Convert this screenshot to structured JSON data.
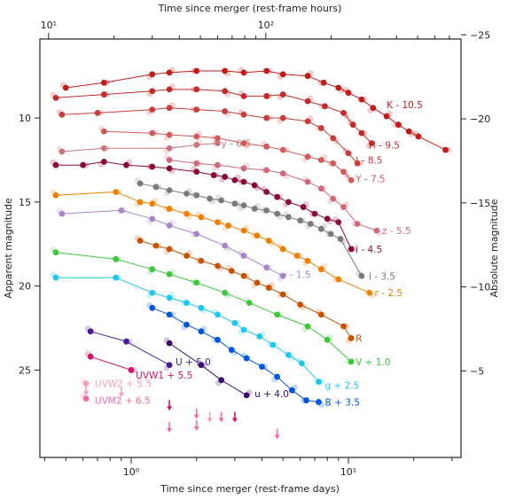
{
  "chart_data": {
    "type": "scatter",
    "xlabel": "Time since merger (rest-frame days)",
    "top_xlabel": "Time since merger (rest-frame hours)",
    "ylabel": "Apparent magnitude",
    "right_ylabel": "Absolute magnitude",
    "x_scale": "log",
    "xlim": [
      0.38,
      33
    ],
    "ylim": [
      30.2,
      5.3
    ],
    "abs_offset": 30.05,
    "x_ticks": [
      {
        "v": 1,
        "label": "10⁰"
      },
      {
        "v": 10,
        "label": "10¹"
      }
    ],
    "top_ticks": [
      {
        "v": 10,
        "label": "10¹"
      },
      {
        "v": 100,
        "label": "10²"
      }
    ],
    "y_ticks": [
      {
        "v": 10,
        "label": "10"
      },
      {
        "v": 15,
        "label": "15"
      },
      {
        "v": 20,
        "label": "20"
      },
      {
        "v": 25,
        "label": "25"
      }
    ],
    "right_ticks": [
      {
        "v": -25,
        "label": "−25"
      },
      {
        "v": -20,
        "label": "−20"
      },
      {
        "v": -15,
        "label": "−15"
      },
      {
        "v": -10,
        "label": "−10"
      },
      {
        "v": -5,
        "label": "−5"
      }
    ],
    "series": [
      {
        "name": "K - 10.5",
        "color": "#c41a1a",
        "label_at": [
          15,
          9.2
        ],
        "values": [
          [
            0.5,
            8.2
          ],
          [
            0.75,
            7.9
          ],
          [
            1.25,
            7.4
          ],
          [
            1.5,
            7.3
          ],
          [
            2.0,
            7.2
          ],
          [
            2.7,
            7.2
          ],
          [
            3.3,
            7.3
          ],
          [
            4.2,
            7.2
          ],
          [
            5.0,
            7.4
          ],
          [
            6.5,
            7.5
          ],
          [
            7.7,
            7.9
          ],
          [
            9.0,
            8.2
          ],
          [
            10.0,
            8.5
          ],
          [
            11.5,
            8.9
          ],
          [
            13.0,
            9.4
          ],
          [
            15.0,
            9.9
          ],
          [
            17.0,
            10.4
          ],
          [
            19.0,
            10.8
          ],
          [
            21.0,
            11.1
          ],
          [
            28.0,
            11.9
          ]
        ]
      },
      {
        "name": "H - 9.5",
        "color": "#c42a2a",
        "label_at": [
          12.4,
          11.6
        ],
        "values": [
          [
            0.45,
            8.8
          ],
          [
            0.75,
            8.6
          ],
          [
            1.25,
            8.4
          ],
          [
            1.5,
            8.3
          ],
          [
            2.0,
            8.3
          ],
          [
            2.7,
            8.4
          ],
          [
            3.3,
            8.7
          ],
          [
            4.2,
            8.7
          ],
          [
            5.0,
            8.6
          ],
          [
            6.5,
            9.0
          ],
          [
            7.8,
            9.3
          ],
          [
            9.5,
            9.7
          ],
          [
            10.5,
            10.4
          ],
          [
            11.5,
            10.9
          ],
          [
            12.8,
            11.5
          ]
        ]
      },
      {
        "name": "J - 8.5",
        "color": "#c73c3c",
        "label_at": [
          10.8,
          12.5
        ],
        "values": [
          [
            0.48,
            9.8
          ],
          [
            0.7,
            9.7
          ],
          [
            1.25,
            9.5
          ],
          [
            1.5,
            9.4
          ],
          [
            2.0,
            9.5
          ],
          [
            2.7,
            9.6
          ],
          [
            3.3,
            9.8
          ],
          [
            4.2,
            10.0
          ],
          [
            5.0,
            10.0
          ],
          [
            6.5,
            10.2
          ],
          [
            7.5,
            10.6
          ],
          [
            8.5,
            11.2
          ],
          [
            10.0,
            12.1
          ],
          [
            11.0,
            12.7
          ]
        ]
      },
      {
        "name": "Y - 7.5",
        "color": "#d25a5a",
        "label_at": [
          10.8,
          13.6
        ],
        "values": [
          [
            0.75,
            10.8
          ],
          [
            1.25,
            10.9
          ],
          [
            1.5,
            11.0
          ],
          [
            2.0,
            11.1
          ],
          [
            2.5,
            11.2
          ],
          [
            3.3,
            11.5
          ],
          [
            4.2,
            11.7
          ],
          [
            5.0,
            11.9
          ],
          [
            6.5,
            12.3
          ],
          [
            7.5,
            12.5
          ],
          [
            8.5,
            12.7
          ],
          [
            9.5,
            13.2
          ],
          [
            10.3,
            13.7
          ]
        ]
      },
      {
        "name": "y - 6.5",
        "color": "#c8767a",
        "label_at": [
          2.6,
          11.5
        ],
        "values": [
          [
            0.48,
            12.0
          ],
          [
            0.75,
            11.8
          ],
          [
            1.5,
            11.8
          ],
          [
            2.0,
            11.6
          ],
          [
            2.5,
            11.5
          ]
        ]
      },
      {
        "name": "i - 4.5",
        "color": "#8b0a3a",
        "label_at": [
          10.8,
          17.8
        ],
        "values": [
          [
            0.45,
            12.8
          ],
          [
            0.6,
            12.8
          ],
          [
            0.75,
            12.6
          ],
          [
            0.95,
            12.8
          ],
          [
            1.25,
            12.9
          ],
          [
            1.5,
            13.0
          ],
          [
            2.0,
            13.2
          ],
          [
            2.4,
            13.4
          ],
          [
            2.7,
            13.5
          ],
          [
            3.0,
            13.7
          ],
          [
            3.3,
            13.8
          ],
          [
            3.7,
            14.0
          ],
          [
            4.2,
            14.4
          ],
          [
            4.7,
            14.7
          ],
          [
            5.3,
            15.0
          ],
          [
            6.2,
            15.3
          ],
          [
            7.0,
            15.7
          ],
          [
            8.0,
            16.0
          ],
          [
            9.0,
            16.2
          ],
          [
            10.3,
            17.8
          ]
        ]
      },
      {
        "name": "z - 5.5",
        "color": "#d06a7a",
        "label_at": [
          14.3,
          16.7
        ],
        "values": [
          [
            1.5,
            12.5
          ],
          [
            2.0,
            12.7
          ],
          [
            2.5,
            12.8
          ],
          [
            3.3,
            13.0
          ],
          [
            4.2,
            13.1
          ],
          [
            5.0,
            13.3
          ],
          [
            6.5,
            13.8
          ],
          [
            7.5,
            14.2
          ],
          [
            8.5,
            14.8
          ],
          [
            9.5,
            15.3
          ],
          [
            11.0,
            16.3
          ],
          [
            13.5,
            16.7
          ]
        ]
      },
      {
        "name": "I - 3.5",
        "color": "#7a7a7a",
        "label_at": [
          12.4,
          19.4
        ],
        "values": [
          [
            1.1,
            13.9
          ],
          [
            1.3,
            14.1
          ],
          [
            1.5,
            14.3
          ],
          [
            1.8,
            14.5
          ],
          [
            2.0,
            14.6
          ],
          [
            2.3,
            14.8
          ],
          [
            2.6,
            14.9
          ],
          [
            3.0,
            15.1
          ],
          [
            3.3,
            15.2
          ],
          [
            3.7,
            15.4
          ],
          [
            4.2,
            15.5
          ],
          [
            4.7,
            15.7
          ],
          [
            5.3,
            15.9
          ],
          [
            6.0,
            16.1
          ],
          [
            6.7,
            16.3
          ],
          [
            7.5,
            16.6
          ],
          [
            8.3,
            16.9
          ],
          [
            9.2,
            17.2
          ],
          [
            11.5,
            19.4
          ]
        ]
      },
      {
        "name": "r - 2.5",
        "color": "#f07f00",
        "label_at": [
          13.2,
          20.4
        ],
        "values": [
          [
            0.45,
            14.6
          ],
          [
            0.85,
            14.4
          ],
          [
            1.1,
            15.0
          ],
          [
            1.25,
            15.1
          ],
          [
            1.5,
            15.4
          ],
          [
            1.8,
            15.7
          ],
          [
            2.1,
            15.9
          ],
          [
            2.5,
            16.2
          ],
          [
            2.8,
            16.4
          ],
          [
            3.3,
            16.7
          ],
          [
            3.8,
            17.0
          ],
          [
            4.3,
            17.3
          ],
          [
            5.0,
            17.8
          ],
          [
            5.8,
            18.2
          ],
          [
            6.5,
            18.5
          ],
          [
            7.5,
            19.0
          ],
          [
            9.0,
            19.6
          ],
          [
            12.5,
            20.4
          ]
        ]
      },
      {
        "name": "w - 1.5",
        "color": "#a885c8",
        "label_at": [
          4.8,
          19.3
        ],
        "values": [
          [
            0.48,
            15.7
          ],
          [
            0.9,
            15.5
          ],
          [
            1.25,
            16.0
          ],
          [
            1.5,
            16.4
          ],
          [
            2.0,
            16.9
          ],
          [
            2.7,
            17.6
          ],
          [
            3.3,
            18.2
          ],
          [
            4.2,
            18.9
          ],
          [
            5.0,
            19.4
          ]
        ]
      },
      {
        "name": "R",
        "color": "#c85000",
        "label_at": [
          10.8,
          23.1
        ],
        "values": [
          [
            1.1,
            17.3
          ],
          [
            1.3,
            17.6
          ],
          [
            1.5,
            17.8
          ],
          [
            1.8,
            18.2
          ],
          [
            2.1,
            18.5
          ],
          [
            2.5,
            18.8
          ],
          [
            2.9,
            19.1
          ],
          [
            3.3,
            19.4
          ],
          [
            3.8,
            19.8
          ],
          [
            4.3,
            20.1
          ],
          [
            5.0,
            20.5
          ],
          [
            6.0,
            21.1
          ],
          [
            7.5,
            21.7
          ],
          [
            9.5,
            22.4
          ],
          [
            10.3,
            23.1
          ]
        ]
      },
      {
        "name": "V + 1.0",
        "color": "#3cc83c",
        "label_at": [
          10.8,
          24.5
        ],
        "values": [
          [
            0.45,
            18.0
          ],
          [
            0.85,
            18.4
          ],
          [
            1.25,
            19.0
          ],
          [
            1.5,
            19.3
          ],
          [
            2.0,
            19.8
          ],
          [
            2.7,
            20.4
          ],
          [
            3.5,
            21.0
          ],
          [
            4.7,
            21.7
          ],
          [
            6.5,
            22.4
          ],
          [
            8.0,
            23.2
          ],
          [
            10.3,
            24.5
          ]
        ]
      },
      {
        "name": "g + 2.5",
        "color": "#1ac8f0",
        "label_at": [
          7.8,
          25.9
        ],
        "values": [
          [
            0.45,
            19.5
          ],
          [
            0.85,
            19.5
          ],
          [
            1.25,
            20.4
          ],
          [
            1.5,
            20.7
          ],
          [
            1.8,
            21.0
          ],
          [
            2.1,
            21.3
          ],
          [
            2.5,
            21.7
          ],
          [
            3.0,
            22.2
          ],
          [
            3.3,
            22.6
          ],
          [
            3.9,
            23.0
          ],
          [
            4.5,
            23.5
          ],
          [
            5.3,
            24.1
          ],
          [
            6.1,
            24.6
          ],
          [
            7.3,
            25.7
          ]
        ]
      },
      {
        "name": "B + 3.5",
        "color": "#0055e0",
        "label_at": [
          7.8,
          26.9
        ],
        "values": [
          [
            1.25,
            21.3
          ],
          [
            1.5,
            21.7
          ],
          [
            1.8,
            22.3
          ],
          [
            2.1,
            22.7
          ],
          [
            2.5,
            23.2
          ],
          [
            2.9,
            23.8
          ],
          [
            3.4,
            24.3
          ],
          [
            4.0,
            24.8
          ],
          [
            4.7,
            25.4
          ],
          [
            5.5,
            26.2
          ],
          [
            6.4,
            26.8
          ],
          [
            7.3,
            26.9
          ]
        ]
      },
      {
        "name": "U + 5.0",
        "color": "#4a1a9a",
        "label_at": [
          1.6,
          24.5
        ],
        "values": [
          [
            0.65,
            22.7
          ],
          [
            0.95,
            23.3
          ],
          [
            1.5,
            24.7
          ]
        ]
      },
      {
        "name": "u + 4.0",
        "color": "#3a0c6a",
        "label_at": [
          3.7,
          26.4
        ],
        "values": [
          [
            1.5,
            23.4
          ],
          [
            2.1,
            24.7
          ],
          [
            2.6,
            25.6
          ],
          [
            3.4,
            26.5
          ]
        ]
      },
      {
        "name": "UVW1 + 5.5",
        "color": "#d6136a",
        "label_at": [
          1.05,
          25.3
        ],
        "values": [
          [
            0.65,
            24.2
          ],
          [
            1.0,
            25.0
          ]
        ]
      },
      {
        "name": "UVW2 + 5.5",
        "color": "#f4a0b8",
        "label_at": [
          0.68,
          25.8
        ],
        "values": [
          [
            0.62,
            25.8
          ]
        ]
      },
      {
        "name": "UVM2 + 6.5",
        "color": "#f06aaa",
        "label_at": [
          0.68,
          26.8
        ],
        "values": [
          [
            0.62,
            26.7
          ]
        ]
      }
    ],
    "upper_limits": [
      {
        "x": 0.62,
        "y": 26.2,
        "color": "#f4a0b8"
      },
      {
        "x": 0.9,
        "y": 26.3,
        "color": "#f4a0b8"
      },
      {
        "x": 1.5,
        "y": 27.1,
        "color": "#d6136a"
      },
      {
        "x": 2.0,
        "y": 27.6,
        "color": "#f06aaa"
      },
      {
        "x": 2.3,
        "y": 27.8,
        "color": "#f4a0b8"
      },
      {
        "x": 2.6,
        "y": 27.8,
        "color": "#f06aaa"
      },
      {
        "x": 3.0,
        "y": 27.8,
        "color": "#d6136a"
      },
      {
        "x": 1.5,
        "y": 28.4,
        "color": "#f06aaa"
      },
      {
        "x": 2.0,
        "y": 28.3,
        "color": "#f06aaa"
      },
      {
        "x": 4.7,
        "y": 28.8,
        "color": "#f06aaa"
      }
    ]
  }
}
